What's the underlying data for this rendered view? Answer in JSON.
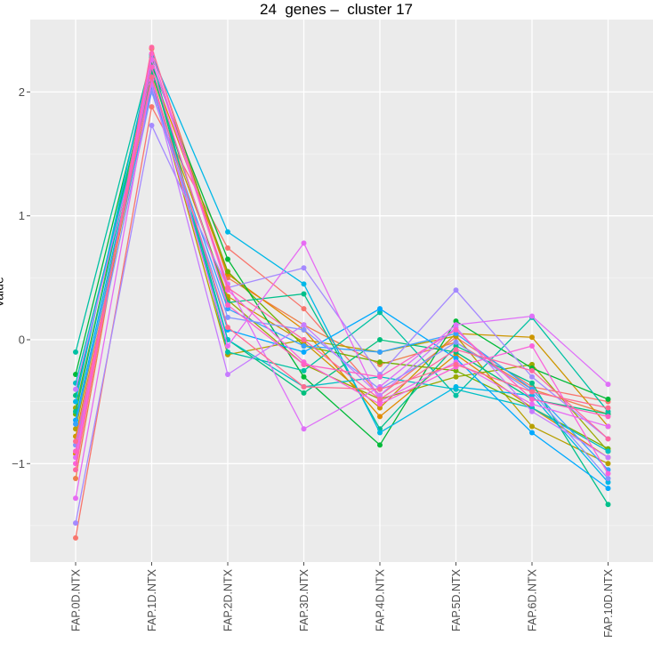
{
  "chart_data": {
    "type": "line",
    "title": "24  genes –  cluster 17",
    "ylabel": "value",
    "xlabel": "",
    "categories": [
      "FAP.0D.NTX",
      "FAP.1D.NTX",
      "FAP.2D.NTX",
      "FAP.3D.NTX",
      "FAP.4D.NTX",
      "FAP.5D.NTX",
      "FAP.6D.NTX",
      "FAP.10D.NTX"
    ],
    "ylim": [
      -1.8,
      2.55
    ],
    "yticks": [
      -1,
      0,
      1,
      2
    ],
    "ytick_labels": [
      "−1",
      "0",
      "1",
      "2"
    ],
    "grid": true,
    "legend": "none",
    "background": "#EBEBEB",
    "series": [
      {
        "color": "#F8766D",
        "values": [
          -1.6,
          1.88,
          0.74,
          0.25,
          -0.45,
          0.02,
          -0.38,
          -0.5
        ]
      },
      {
        "color": "#EE7F4A",
        "values": [
          -1.12,
          2.35,
          0.5,
          0.12,
          -0.2,
          -0.02,
          -0.4,
          -0.6
        ]
      },
      {
        "color": "#E18A00",
        "values": [
          -0.92,
          2.18,
          0.53,
          0.08,
          -0.62,
          -0.12,
          -0.55,
          -0.95
        ]
      },
      {
        "color": "#CD9600",
        "values": [
          -0.78,
          2.05,
          0.35,
          -0.02,
          -0.55,
          0.05,
          0.02,
          -0.7
        ]
      },
      {
        "color": "#B79F00",
        "values": [
          -0.72,
          2.1,
          -0.12,
          0.0,
          -0.1,
          0.03,
          -0.7,
          -1.0
        ]
      },
      {
        "color": "#9AA800",
        "values": [
          -0.55,
          2.15,
          0.32,
          -0.2,
          -0.48,
          -0.3,
          -0.2,
          -0.9
        ]
      },
      {
        "color": "#72B000",
        "values": [
          -0.6,
          2.25,
          0.55,
          -0.05,
          -0.18,
          -0.25,
          -0.55,
          -0.88
        ]
      },
      {
        "color": "#00BA38",
        "values": [
          -0.28,
          2.22,
          0.65,
          -0.3,
          -0.85,
          0.15,
          -0.23,
          -0.48
        ]
      },
      {
        "color": "#00BF7D",
        "values": [
          -0.45,
          2.2,
          0.0,
          -0.43,
          0.0,
          -0.1,
          -0.48,
          -0.6
        ]
      },
      {
        "color": "#00C08B",
        "values": [
          -0.58,
          2.17,
          0.3,
          0.37,
          -0.72,
          -0.05,
          -0.35,
          -1.33
        ]
      },
      {
        "color": "#00C1A3",
        "values": [
          -0.1,
          2.28,
          -0.1,
          -0.25,
          0.22,
          -0.45,
          0.18,
          -0.58
        ]
      },
      {
        "color": "#00BFC4",
        "values": [
          -0.35,
          2.08,
          0.0,
          -0.38,
          -0.3,
          -0.4,
          -0.55,
          -0.9
        ]
      },
      {
        "color": "#00B8E7",
        "values": [
          -0.5,
          2.3,
          0.87,
          0.45,
          -0.75,
          -0.38,
          -0.45,
          -1.15
        ]
      },
      {
        "color": "#00A9FF",
        "values": [
          -0.65,
          2.12,
          0.08,
          -0.1,
          0.25,
          -0.15,
          -0.75,
          -1.2
        ]
      },
      {
        "color": "#35A2FF",
        "values": [
          -0.68,
          2.02,
          0.25,
          -0.05,
          -0.1,
          0.05,
          -0.4,
          -1.05
        ]
      },
      {
        "color": "#8494FF",
        "values": [
          -0.85,
          2.0,
          0.18,
          0.08,
          -0.4,
          -0.02,
          -0.42,
          -1.12
        ]
      },
      {
        "color": "#A58AFF",
        "values": [
          -1.48,
          1.73,
          0.42,
          0.58,
          -0.28,
          0.4,
          -0.3,
          -0.8
        ]
      },
      {
        "color": "#C77CFF",
        "values": [
          -0.4,
          2.06,
          -0.28,
          0.12,
          -0.45,
          0.1,
          -0.58,
          -0.95
        ]
      },
      {
        "color": "#DF70F8",
        "values": [
          -0.95,
          2.26,
          0.45,
          -0.72,
          -0.38,
          0.12,
          0.19,
          -0.36
        ]
      },
      {
        "color": "#E76BF3",
        "values": [
          -1.28,
          2.1,
          -0.05,
          0.78,
          -0.5,
          -0.18,
          -0.52,
          -0.7
        ]
      },
      {
        "color": "#FA62DB",
        "values": [
          -1.0,
          2.31,
          0.4,
          -0.18,
          -0.52,
          -0.22,
          -0.05,
          -1.08
        ]
      },
      {
        "color": "#FF61C3",
        "values": [
          -0.9,
          2.2,
          0.28,
          -0.2,
          -0.3,
          0.08,
          -0.48,
          -0.62
        ]
      },
      {
        "color": "#FF68A1",
        "values": [
          -1.05,
          2.36,
          0.42,
          0.0,
          -0.48,
          -0.08,
          -0.25,
          -0.8
        ]
      },
      {
        "color": "#FF6C91",
        "values": [
          -0.82,
          2.12,
          0.1,
          -0.38,
          -0.4,
          -0.2,
          -0.42,
          -0.55
        ]
      }
    ]
  }
}
